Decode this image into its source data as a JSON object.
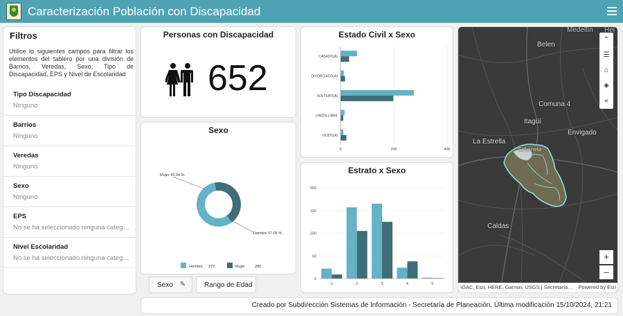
{
  "app": {
    "title": "Caracterización Población con Discapacidad",
    "logo_icon": "municipal-shield-icon",
    "menu_icon": "hamburger-menu-icon"
  },
  "filters": {
    "title": "Filtros",
    "intro": "Utilice lo siguientes campos para filtrar los elementos del tablero por una división de Barrios, Veredas, Sexo, Tipo de Discapacidad, EPS y Nivel de Escolaridad",
    "items": [
      {
        "label": "Tipo Discapacidad",
        "value": "Ninguno"
      },
      {
        "label": "Barrios",
        "value": "Ninguno"
      },
      {
        "label": "Veredas",
        "value": "Ninguno"
      },
      {
        "label": "Sexo",
        "value": "Ninguno"
      },
      {
        "label": "EPS",
        "value": "No se ha seleccionado ninguna categ…"
      },
      {
        "label": "Nivel Escolaridad",
        "value": "No se ha seleccionado ninguna categ…"
      }
    ]
  },
  "kpi": {
    "title": "Personas con Discapacidad",
    "value": "652",
    "icon": "man-woman-icon"
  },
  "sexo": {
    "title": "Sexo",
    "slice_labels": {
      "mujer": "Mujer 42,94 %",
      "hombre": "Hombre 57,06 %"
    },
    "legend": [
      {
        "name": "Hombre",
        "value": "372",
        "color": "#64b2c4"
      },
      {
        "name": "Mujer",
        "value": "280",
        "color": "#3f6d78"
      }
    ]
  },
  "tabs": {
    "sexo": "Sexo",
    "edad": "Rango de Edad",
    "edit_icon": "pencil-icon"
  },
  "estado_civil": {
    "title": "Estado Civil x Sexo"
  },
  "estrato": {
    "title": "Estrato x Sexo"
  },
  "chart_data": [
    {
      "type": "pie",
      "categories": [
        "Hombre",
        "Mujer"
      ],
      "values": [
        372,
        280
      ],
      "percentages": [
        57.06,
        42.94
      ],
      "colors": [
        "#64b2c4",
        "#3f6d78"
      ],
      "title": "Sexo",
      "legend": "bottom"
    },
    {
      "type": "bar",
      "orientation": "horizontal",
      "title": "Estado Civil x Sexo",
      "categories": [
        "CASADO(A)",
        "DIVORCIADO(A)",
        "SOLTERO(A)",
        "UNIÓN LIBRE",
        "VIUDO(A)"
      ],
      "series": [
        {
          "values": [
            62,
            12,
            275,
            15,
            10
          ],
          "color": "#64b2c4"
        },
        {
          "values": [
            32,
            17,
            198,
            10,
            22
          ],
          "color": "#3f6d78"
        }
      ],
      "xticks": [
        "0",
        "200",
        "400"
      ],
      "xlim": [
        0,
        400
      ],
      "grid": true
    },
    {
      "type": "bar",
      "title": "Estrato x Sexo",
      "categories": [
        "1",
        "2",
        "3",
        "4",
        "5"
      ],
      "series": [
        {
          "values": [
            22,
            157,
            165,
            24,
            2
          ],
          "color": "#64b2c4"
        },
        {
          "values": [
            9,
            105,
            125,
            38,
            1
          ],
          "color": "#3f6d78"
        }
      ],
      "yticks": [
        "0",
        "50",
        "100",
        "150",
        "200"
      ],
      "ylim": [
        0,
        200
      ],
      "grid": true
    }
  ],
  "map": {
    "labels": [
      "Medellín",
      "Hel",
      "Belen",
      "Comuna 4",
      "Itagüí",
      "Envigado",
      "La Estrella",
      "Sabaneta",
      "Caldas"
    ],
    "tools": [
      "collapse-up-icon",
      "legend-list-icon",
      "home-icon",
      "layers-icon",
      "collapse-left-icon"
    ],
    "zoom_in": "+",
    "zoom_out": "–",
    "attribution_left": "IGAC, Esri, HERE, Garmin, USGS | Secretaría…",
    "attribution_right": "Powered by Esri"
  },
  "footer": {
    "text": "Creado por Subdirección Sistemas de Información - Secretaría de Planeación. Última modificación 15/10/2024, 21:21"
  }
}
